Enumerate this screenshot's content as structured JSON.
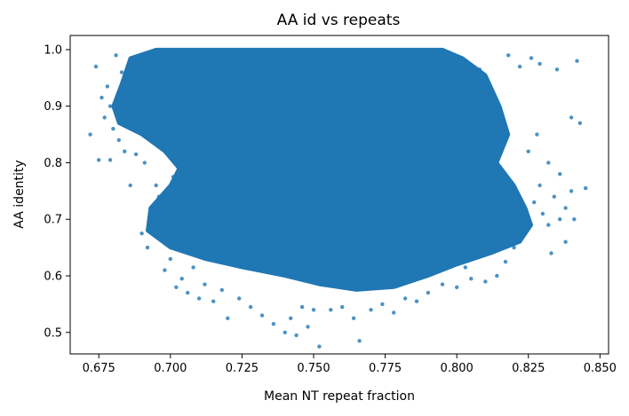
{
  "chart_data": {
    "type": "scatter",
    "title": "AA id vs repeats",
    "xlabel": "Mean NT repeat fraction",
    "ylabel": "AA identity",
    "xlim": [
      0.665,
      0.853
    ],
    "ylim": [
      0.462,
      1.025
    ],
    "xticks": [
      0.675,
      0.7,
      0.725,
      0.75,
      0.775,
      0.8,
      0.825,
      0.85
    ],
    "xtick_labels": [
      "0.675",
      "0.700",
      "0.725",
      "0.750",
      "0.775",
      "0.800",
      "0.825",
      "0.850"
    ],
    "yticks": [
      0.5,
      0.6,
      0.7,
      0.8,
      0.9,
      1.0
    ],
    "ytick_labels": [
      "0.5",
      "0.6",
      "0.7",
      "0.8",
      "0.9",
      "1.0"
    ],
    "grid": false,
    "marker_color": "#1f77b4",
    "series": [
      {
        "name": "",
        "points": [
          [
            0.672,
            0.85
          ],
          [
            0.674,
            0.97
          ],
          [
            0.675,
            0.805
          ],
          [
            0.677,
            0.88
          ],
          [
            0.678,
            0.935
          ],
          [
            0.679,
            0.9
          ],
          [
            0.68,
            0.86
          ],
          [
            0.681,
            0.99
          ],
          [
            0.683,
            0.96
          ],
          [
            0.684,
            0.82
          ],
          [
            0.685,
            0.9
          ],
          [
            0.686,
            0.87
          ],
          [
            0.687,
            0.94
          ],
          [
            0.689,
            0.985
          ],
          [
            0.69,
            0.675
          ],
          [
            0.691,
            0.8
          ],
          [
            0.692,
            0.65
          ],
          [
            0.693,
            0.7
          ],
          [
            0.694,
            0.72
          ],
          [
            0.695,
            0.76
          ],
          [
            0.696,
            0.74
          ],
          [
            0.697,
            0.69
          ],
          [
            0.698,
            0.61
          ],
          [
            0.7,
            0.63
          ],
          [
            0.702,
            0.58
          ],
          [
            0.704,
            0.595
          ],
          [
            0.706,
            0.57
          ],
          [
            0.708,
            0.615
          ],
          [
            0.71,
            0.56
          ],
          [
            0.712,
            0.585
          ],
          [
            0.715,
            0.555
          ],
          [
            0.718,
            0.575
          ],
          [
            0.72,
            0.525
          ],
          [
            0.724,
            0.56
          ],
          [
            0.728,
            0.545
          ],
          [
            0.732,
            0.53
          ],
          [
            0.736,
            0.515
          ],
          [
            0.74,
            0.5
          ],
          [
            0.742,
            0.525
          ],
          [
            0.744,
            0.495
          ],
          [
            0.746,
            0.545
          ],
          [
            0.748,
            0.51
          ],
          [
            0.75,
            0.54
          ],
          [
            0.752,
            0.475
          ],
          [
            0.756,
            0.54
          ],
          [
            0.76,
            0.545
          ],
          [
            0.764,
            0.525
          ],
          [
            0.766,
            0.485
          ],
          [
            0.77,
            0.54
          ],
          [
            0.774,
            0.55
          ],
          [
            0.778,
            0.535
          ],
          [
            0.782,
            0.56
          ],
          [
            0.786,
            0.555
          ],
          [
            0.79,
            0.57
          ],
          [
            0.795,
            0.585
          ],
          [
            0.8,
            0.58
          ],
          [
            0.805,
            0.595
          ],
          [
            0.81,
            0.59
          ],
          [
            0.814,
            0.6
          ],
          [
            0.817,
            0.625
          ],
          [
            0.82,
            0.65
          ],
          [
            0.822,
            0.675
          ],
          [
            0.825,
            0.7
          ],
          [
            0.827,
            0.73
          ],
          [
            0.829,
            0.76
          ],
          [
            0.83,
            0.71
          ],
          [
            0.832,
            0.69
          ],
          [
            0.834,
            0.74
          ],
          [
            0.835,
            0.965
          ],
          [
            0.836,
            0.7
          ],
          [
            0.838,
            0.72
          ],
          [
            0.84,
            0.75
          ],
          [
            0.84,
            0.88
          ],
          [
            0.841,
            0.7
          ],
          [
            0.842,
            0.98
          ],
          [
            0.843,
            0.87
          ],
          [
            0.845,
            0.755
          ],
          [
            0.818,
            0.99
          ],
          [
            0.822,
            0.97
          ],
          [
            0.826,
            0.985
          ],
          [
            0.829,
            0.975
          ],
          [
            0.832,
            0.8
          ],
          [
            0.828,
            0.85
          ],
          [
            0.825,
            0.82
          ],
          [
            0.836,
            0.78
          ],
          [
            0.833,
            0.64
          ],
          [
            0.838,
            0.66
          ],
          [
            0.811,
            0.805
          ],
          [
            0.815,
            0.86
          ],
          [
            0.807,
            0.9
          ],
          [
            0.803,
            0.95
          ],
          [
            0.808,
            0.965
          ],
          [
            0.806,
            0.76
          ],
          [
            0.812,
            0.72
          ],
          [
            0.81,
            0.64
          ],
          [
            0.803,
            0.615
          ],
          [
            0.697,
            0.83
          ],
          [
            0.701,
            0.775
          ],
          [
            0.703,
            0.745
          ],
          [
            0.699,
            0.715
          ],
          [
            0.694,
            0.96
          ],
          [
            0.692,
            0.92
          ],
          [
            0.696,
            0.885
          ],
          [
            0.698,
            0.995
          ],
          [
            0.7,
            0.945
          ],
          [
            0.688,
            0.815
          ],
          [
            0.686,
            0.76
          ],
          [
            0.682,
            0.84
          ],
          [
            0.679,
            0.805
          ],
          [
            0.676,
            0.915
          ]
        ]
      }
    ]
  }
}
